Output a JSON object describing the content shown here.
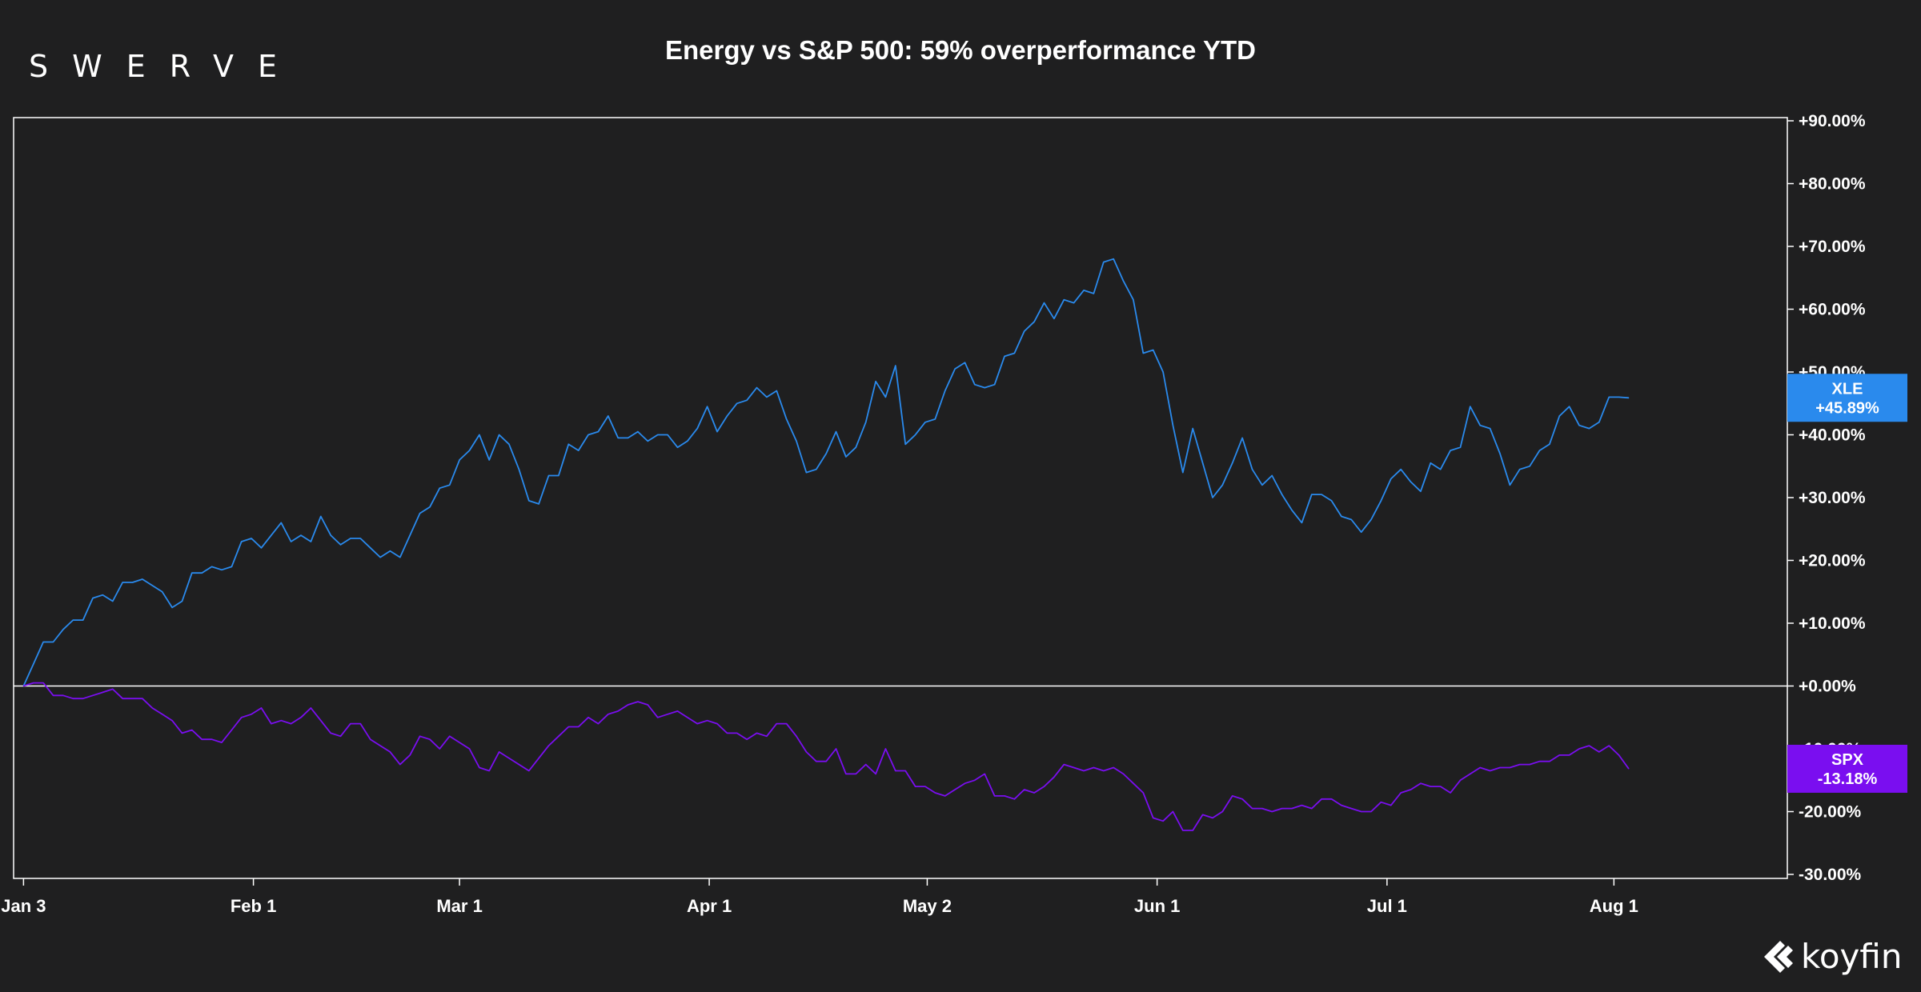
{
  "branding": {
    "left_logo": "SWERVE",
    "right_logo": "koyfin"
  },
  "colors": {
    "background": "#1f1f20",
    "xle": "#2a8aed",
    "spx": "#7a0ef0",
    "frame": "#ffffff"
  },
  "chart_data": {
    "type": "line",
    "title": "Energy vs S&P 500: 59% overperformance YTD",
    "xlabel": "",
    "ylabel": "",
    "x_ticks": [
      {
        "label": "Jan 3",
        "x": 0
      },
      {
        "label": "Feb 1",
        "x": 23.2
      },
      {
        "label": "Mar 1",
        "x": 44
      },
      {
        "label": "Apr 1",
        "x": 69.2
      },
      {
        "label": "May 2",
        "x": 91.2
      },
      {
        "label": "Jun 1",
        "x": 114.4
      },
      {
        "label": "Jul 1",
        "x": 137.6
      },
      {
        "label": "Aug 1",
        "x": 160.5
      }
    ],
    "xlim": [
      -1,
      178
    ],
    "y_ticks": [
      "+90.00%",
      "+80.00%",
      "+70.00%",
      "+60.00%",
      "+50.00%",
      "+40.00%",
      "+30.00%",
      "+20.00%",
      "+10.00%",
      "+0.00%",
      "-10.00%",
      "-20.00%",
      "-30.00%"
    ],
    "y_tick_values": [
      90,
      80,
      70,
      60,
      50,
      40,
      30,
      20,
      10,
      0,
      -10,
      -20,
      -30
    ],
    "ylim": [
      -30,
      90
    ],
    "zero_line": true,
    "grid": false,
    "series": [
      {
        "name": "XLE",
        "last_label": "+45.89%",
        "color": "#2a8aed",
        "values": [
          0,
          3.5,
          7,
          7,
          9,
          10.5,
          10.5,
          14,
          14.5,
          13.5,
          16.5,
          16.5,
          17,
          16,
          15,
          12.5,
          13.5,
          18,
          18,
          19,
          18.5,
          19,
          23,
          23.5,
          22,
          24,
          26,
          23,
          24,
          23,
          27,
          24,
          22.5,
          23.5,
          23.5,
          22,
          20.5,
          21.5,
          20.5,
          24,
          27.5,
          28.5,
          31.5,
          32,
          36,
          37.5,
          40,
          36,
          40,
          38.5,
          34.5,
          29.5,
          29,
          33.5,
          33.5,
          38.5,
          37.5,
          40,
          40.5,
          43,
          39.5,
          39.5,
          40.5,
          39,
          40,
          40,
          38,
          39,
          41,
          44.5,
          40.5,
          43,
          45,
          45.5,
          47.5,
          46,
          47,
          42.5,
          39,
          34,
          34.5,
          37,
          40.5,
          36.5,
          38,
          42,
          48.5,
          46,
          51,
          38.5,
          40,
          42,
          42.5,
          47,
          50.5,
          51.5,
          48,
          47.5,
          48,
          52.5,
          53,
          56.5,
          58,
          61,
          58.5,
          61.5,
          61,
          63,
          62.5,
          67.5,
          68,
          64.5,
          61.5,
          53,
          53.5,
          50,
          41.5,
          34,
          41,
          35.5,
          30,
          32,
          35.5,
          39.5,
          34.5,
          32,
          33.5,
          30.5,
          28,
          26,
          30.5,
          30.5,
          29.5,
          27,
          26.5,
          24.5,
          26.5,
          29.5,
          33,
          34.5,
          32.5,
          31,
          35.5,
          34.5,
          37.5,
          38,
          44.5,
          41.5,
          41,
          37,
          32,
          34.5,
          35,
          37.5,
          38.5,
          43,
          44.5,
          41.5,
          41,
          42,
          46,
          46,
          45.89
        ]
      },
      {
        "name": "SPX",
        "last_label": "-13.18%",
        "color": "#7a0ef0",
        "values": [
          0,
          0.5,
          0.5,
          -1.5,
          -1.5,
          -2,
          -2,
          -1.5,
          -1,
          -0.5,
          -2,
          -2,
          -2,
          -3.5,
          -4.5,
          -5.5,
          -7.5,
          -7,
          -8.5,
          -8.5,
          -9,
          -7,
          -5,
          -4.5,
          -3.5,
          -6,
          -5.5,
          -6,
          -5,
          -3.5,
          -5.5,
          -7.5,
          -8,
          -6,
          -6,
          -8.5,
          -9.5,
          -10.5,
          -12.5,
          -11,
          -8,
          -8.5,
          -10,
          -8,
          -9,
          -10,
          -13,
          -13.5,
          -10.5,
          -11.5,
          -12.5,
          -13.5,
          -11.5,
          -9.5,
          -8,
          -6.5,
          -6.5,
          -5,
          -6,
          -4.5,
          -4,
          -3,
          -2.5,
          -3,
          -5,
          -4.5,
          -4,
          -5,
          -6,
          -5.5,
          -6,
          -7.5,
          -7.5,
          -8.5,
          -7.5,
          -8,
          -6,
          -6,
          -8,
          -10.5,
          -12,
          -12,
          -10,
          -14,
          -14,
          -12.5,
          -14,
          -10,
          -13.5,
          -13.5,
          -16,
          -16,
          -17,
          -17.5,
          -16.5,
          -15.5,
          -15,
          -14,
          -17.5,
          -17.5,
          -18,
          -16.5,
          -17,
          -16,
          -14.5,
          -12.5,
          -13,
          -13.5,
          -13,
          -13.5,
          -13,
          -14,
          -15.5,
          -17,
          -21,
          -21.5,
          -20,
          -23,
          -23,
          -20.5,
          -21,
          -20,
          -17.5,
          -18,
          -19.5,
          -19.5,
          -20,
          -19.5,
          -19.5,
          -19,
          -19.5,
          -18,
          -18,
          -19,
          -19.5,
          -20,
          -20,
          -18.5,
          -19,
          -17,
          -16.5,
          -15.5,
          -16,
          -16,
          -17,
          -15,
          -14,
          -13,
          -13.5,
          -13,
          -13,
          -12.5,
          -12.5,
          -12,
          -12,
          -11,
          -11,
          -10,
          -9.5,
          -10.5,
          -9.5,
          -11,
          -13.18
        ]
      }
    ],
    "legend": "right-edge value badges"
  }
}
